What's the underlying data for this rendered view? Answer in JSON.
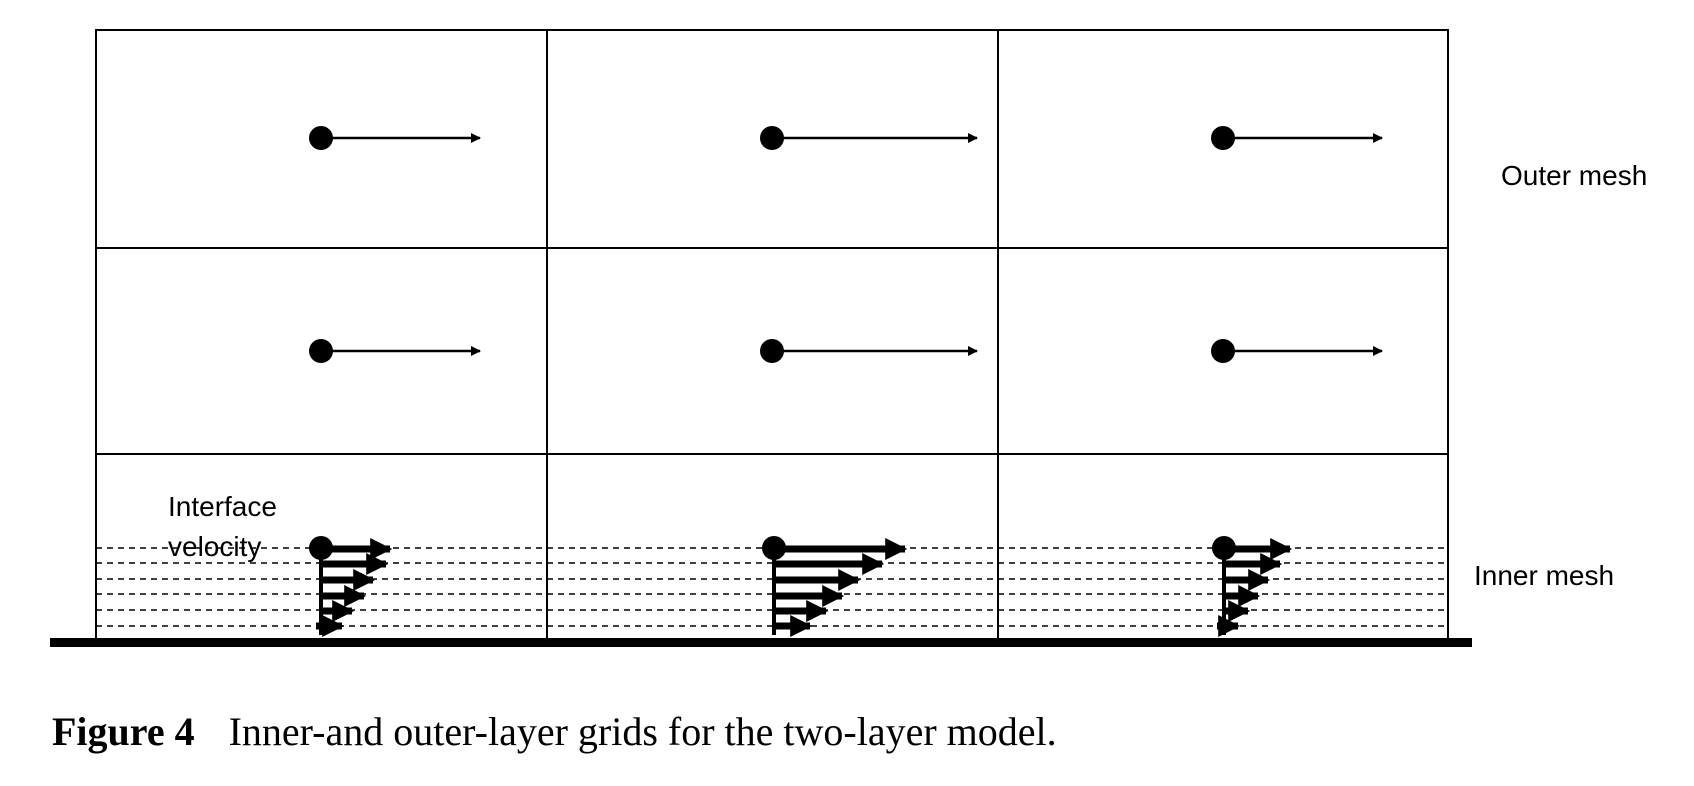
{
  "labels": {
    "outer_mesh": "Outer mesh",
    "inner_mesh": "Inner mesh",
    "interface_line1": "Interface",
    "interface_line2": "velocity"
  },
  "caption": {
    "figure_number": "Figure 4",
    "text": "Inner-and outer-layer grids for the two-layer model."
  },
  "grid": {
    "columns": 3,
    "outer_rows": 3,
    "inner_layers": 6
  },
  "outer_velocity_vectors": [
    {
      "column": 1,
      "row": 1
    },
    {
      "column": 2,
      "row": 1
    },
    {
      "column": 3,
      "row": 1
    },
    {
      "column": 1,
      "row": 2
    },
    {
      "column": 2,
      "row": 2
    },
    {
      "column": 3,
      "row": 2
    }
  ],
  "inner_velocity_profiles": [
    {
      "column": 1,
      "profile": "short"
    },
    {
      "column": 2,
      "profile": "long"
    },
    {
      "column": 3,
      "profile": "short"
    }
  ],
  "colors": {
    "line": "#000000",
    "background": "#ffffff"
  }
}
